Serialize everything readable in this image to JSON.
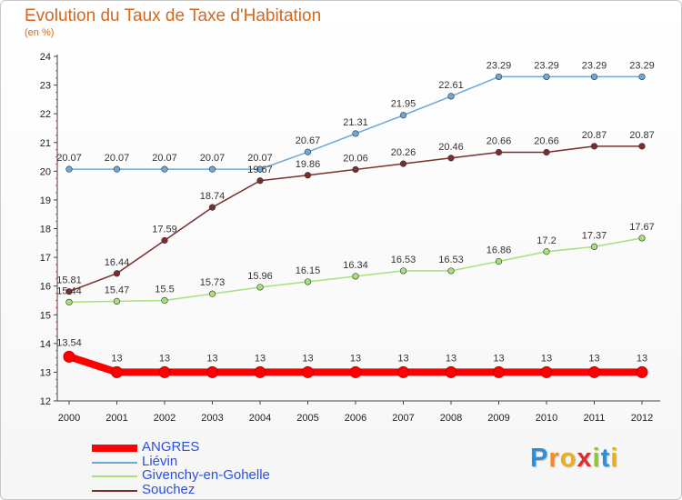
{
  "chart_data": {
    "type": "line",
    "title": "Evolution du Taux de Taxe d'Habitation",
    "subtitle": "(en %)",
    "x": [
      "2000",
      "2001",
      "2002",
      "2003",
      "2004",
      "2005",
      "2006",
      "2007",
      "2008",
      "2009",
      "2010",
      "2011",
      "2012"
    ],
    "y_ticks": [
      "12",
      "13",
      "14",
      "15",
      "16",
      "17",
      "18",
      "19",
      "20",
      "21",
      "22",
      "23",
      "24"
    ],
    "ylim": [
      12,
      24
    ],
    "series": [
      {
        "name": "Liévin",
        "color": "#6fa7d6",
        "values": [
          20.07,
          20.07,
          20.07,
          20.07,
          20.07,
          20.67,
          21.31,
          21.95,
          22.61,
          23.29,
          23.29,
          23.29,
          23.29
        ],
        "labels": [
          "20.07",
          "20.07",
          "20.07",
          "20.07",
          "20.07",
          "20.67",
          "21.31",
          "21.95",
          "22.61",
          "23.29",
          "23.29",
          "23.29",
          "23.29"
        ]
      },
      {
        "name": "Souchez",
        "color": "#7a2e2e",
        "values": [
          15.81,
          16.44,
          17.59,
          18.74,
          19.67,
          19.86,
          20.06,
          20.26,
          20.46,
          20.66,
          20.66,
          20.87,
          20.87
        ],
        "labels": [
          "15.81",
          "16.44",
          "17.59",
          "18.74",
          "19.67",
          "19.86",
          "20.06",
          "20.26",
          "20.46",
          "20.66",
          "20.66",
          "20.87",
          "20.87"
        ]
      },
      {
        "name": "Givenchy-en-Gohelle",
        "color": "#a8e07a",
        "values": [
          15.44,
          15.47,
          15.5,
          15.73,
          15.96,
          16.15,
          16.34,
          16.53,
          16.53,
          16.86,
          17.2,
          17.37,
          17.67
        ],
        "labels": [
          "15.44",
          "15.47",
          "15.5",
          "15.73",
          "15.96",
          "16.15",
          "16.34",
          "16.53",
          "16.53",
          "16.86",
          "17.2",
          "17.37",
          "17.67"
        ]
      },
      {
        "name": "ANGRES",
        "color": "#ff0000",
        "values": [
          13.54,
          13,
          13,
          13,
          13,
          13,
          13,
          13,
          13,
          13,
          13,
          13,
          13
        ],
        "labels": [
          "13.54",
          "13",
          "13",
          "13",
          "13",
          "13",
          "13",
          "13",
          "13",
          "13",
          "13",
          "13",
          "13"
        ]
      }
    ],
    "legend": [
      {
        "name": "ANGRES",
        "color": "#ff0000"
      },
      {
        "name": "Liévin",
        "color": "#6fa7d6"
      },
      {
        "name": "Givenchy-en-Gohelle",
        "color": "#a8e07a"
      },
      {
        "name": "Souchez",
        "color": "#7a2e2e"
      }
    ],
    "legend_placement": "bottom-left",
    "grid": false
  },
  "brand": {
    "letters": [
      "P",
      "r",
      "o",
      "x",
      "i",
      "t",
      "i"
    ],
    "colors": [
      "#2d8fd8",
      "#f28c28",
      "#e8b020",
      "#d83030",
      "#8cc63f",
      "#2d8fd8",
      "#e8b020"
    ]
  }
}
